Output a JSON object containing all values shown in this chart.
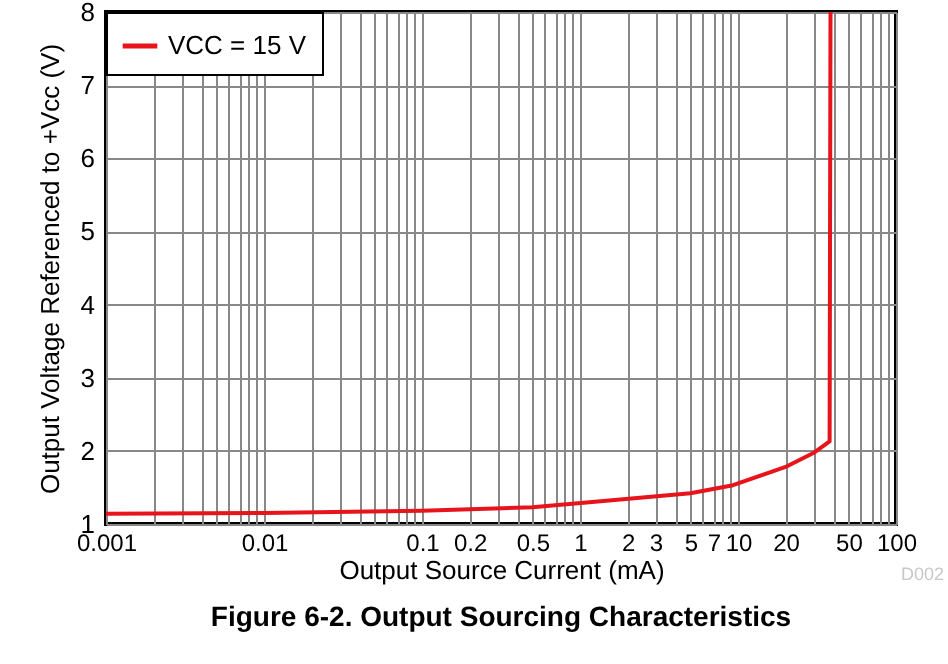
{
  "chart_data": {
    "type": "line",
    "title": "Figure 6-2. Output Sourcing Characteristics",
    "xlabel": "Output Source Current (mA)",
    "ylabel": "Output Voltage Referenced to +Vcc (V)",
    "log": "x",
    "xlim": [
      0.001,
      100
    ],
    "ylim": [
      1,
      8
    ],
    "xticks": [
      0.001,
      {
        "value": 0.002,
        "label": null
      },
      {
        "value": 0.003,
        "label": null
      },
      {
        "value": 0.004,
        "label": null
      },
      {
        "value": 0.005,
        "label": null
      },
      {
        "value": 0.006,
        "label": null
      },
      {
        "value": 0.007,
        "label": null
      },
      {
        "value": 0.008,
        "label": null
      },
      {
        "value": 0.009,
        "label": null
      },
      0.01,
      {
        "value": 0.02,
        "label": null
      },
      {
        "value": 0.03,
        "label": null
      },
      {
        "value": 0.04,
        "label": null
      },
      {
        "value": 0.05,
        "label": null
      },
      {
        "value": 0.06,
        "label": null
      },
      {
        "value": 0.07,
        "label": null
      },
      {
        "value": 0.08,
        "label": null
      },
      {
        "value": 0.09,
        "label": null
      },
      0.1,
      0.2,
      {
        "value": 0.3,
        "label": null
      },
      {
        "value": 0.4,
        "label": null
      },
      0.5,
      {
        "value": 0.6,
        "label": null
      },
      {
        "value": 0.7,
        "label": null
      },
      {
        "value": 0.8,
        "label": null
      },
      {
        "value": 0.9,
        "label": null
      },
      1,
      2,
      3,
      {
        "value": 4,
        "label": null
      },
      5,
      {
        "value": 6,
        "label": null
      },
      7,
      {
        "value": 8,
        "label": null
      },
      {
        "value": 9,
        "label": null
      },
      10,
      20,
      {
        "value": 30,
        "label": null
      },
      {
        "value": 40,
        "label": null
      },
      50,
      {
        "value": 60,
        "label": null
      },
      {
        "value": 70,
        "label": null
      },
      {
        "value": 80,
        "label": null
      },
      {
        "value": 90,
        "label": null
      },
      100
    ],
    "yticks": [
      1,
      2,
      3,
      4,
      5,
      6,
      7,
      8
    ],
    "grid": true,
    "legend": "top left",
    "marker": "none",
    "line_style": "solid",
    "annotations": [
      "D002"
    ],
    "series": [
      {
        "name": "VCC = 15 V",
        "color": "#e8141c",
        "x": [
          0.001,
          0.01,
          0.1,
          0.5,
          1.35,
          5,
          9.3,
          20,
          30,
          38,
          38.5
        ],
        "values": [
          1.14,
          1.15,
          1.18,
          1.23,
          1.31,
          1.42,
          1.53,
          1.78,
          1.97,
          2.13,
          8
        ]
      }
    ]
  }
}
